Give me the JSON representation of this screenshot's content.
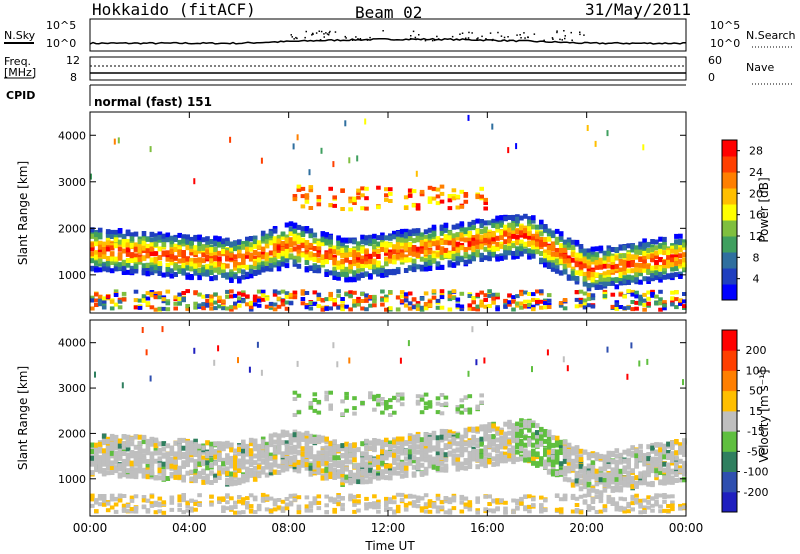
{
  "header": {
    "station": "Hokkaido (fitACF)",
    "beam": "Beam 02",
    "date": "31/May/2011"
  },
  "noise_panel": {
    "left_label": "N.Sky",
    "right_label": "N.Search",
    "ticks_left": [
      "10^5",
      "10^0"
    ],
    "ticks_right": [
      "10^5",
      "10^0"
    ]
  },
  "freq_panel": {
    "left_label_1": "Freq.",
    "left_label_2": "[MHz]",
    "right_label": "Nave",
    "ticks_left": [
      "12",
      "8"
    ],
    "ticks_right": [
      "60",
      "0"
    ]
  },
  "cpid_panel": {
    "label": "CPID",
    "value": "normal (fast) 151"
  },
  "chart_data": [
    {
      "type": "heatmap",
      "title": "",
      "xlabel": "Time UT",
      "ylabel": "Slant Range [km]",
      "x_ticks": [
        "00:00",
        "04:00",
        "08:00",
        "12:00",
        "16:00",
        "20:00",
        "00:00"
      ],
      "y_ticks": [
        1000,
        2000,
        3000,
        4000
      ],
      "ylim": [
        180,
        4500
      ],
      "colorbar": {
        "label": "Power [dB]",
        "ticks": [
          4,
          8,
          12,
          16,
          20,
          24,
          28
        ],
        "colors": [
          "#0000ff",
          "#1f3fbf",
          "#2f6f9f",
          "#3f9f5f",
          "#7fbf3f",
          "#ffff00",
          "#ffbf00",
          "#ff7f00",
          "#ff3f00",
          "#ff0000"
        ]
      }
    },
    {
      "type": "heatmap",
      "title": "",
      "xlabel": "Time UT",
      "ylabel": "Slant Range [km]",
      "x_ticks": [
        "00:00",
        "04:00",
        "08:00",
        "12:00",
        "16:00",
        "20:00",
        "00:00"
      ],
      "y_ticks": [
        1000,
        2000,
        3000,
        4000
      ],
      "ylim": [
        180,
        4500
      ],
      "colorbar": {
        "label": "Velocity [m s⁻¹]",
        "ticks": [
          200,
          100,
          50,
          15,
          -15,
          -50,
          -100,
          -200
        ],
        "colors": [
          "#1f1fbf",
          "#2f4faf",
          "#2f7f5f",
          "#5fbf3f",
          "#bfbfbf",
          "#ffbf00",
          "#ff7f00",
          "#ff3f00",
          "#ff0000"
        ]
      }
    }
  ]
}
